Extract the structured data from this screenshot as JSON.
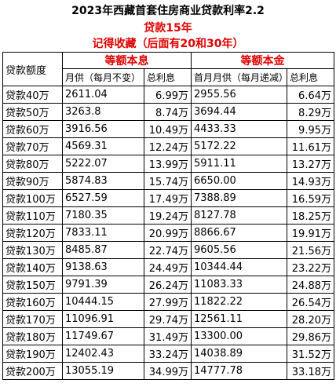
{
  "title": "2023年西藏首套住房商业贷款利率2.2",
  "subtitle": "贷款15年",
  "note": "记得收藏（后面有20和30年）",
  "headers": {
    "amount": "贷款额度",
    "equal_payment": "等额本息",
    "equal_principal": "等额本金",
    "monthly_fixed": "月供（每月不变）",
    "total_interest_1": "总利息",
    "first_monthly": "首月月供（每月递减）",
    "total_interest_2": "总利息"
  },
  "rows": [
    {
      "amount": "贷款40万",
      "monthly": "2611.04",
      "interest1": "6.99万",
      "first": "2955.56",
      "interest2": "6.64万"
    },
    {
      "amount": "贷款50万",
      "monthly": "3263.8",
      "interest1": "8.74万",
      "first": "3694.44",
      "interest2": "8.29万"
    },
    {
      "amount": "贷款60万",
      "monthly": "3916.56",
      "interest1": "10.49万",
      "first": "4433.33",
      "interest2": "9.95万"
    },
    {
      "amount": "贷款70万",
      "monthly": "4569.31",
      "interest1": "12.24万",
      "first": "5172.22",
      "interest2": "11.61万"
    },
    {
      "amount": "贷款80万",
      "monthly": "5222.07",
      "interest1": "13.99万",
      "first": "5911.11",
      "interest2": "13.27万"
    },
    {
      "amount": "贷款90万",
      "monthly": "5874.83",
      "interest1": "15.74万",
      "first": "6650.00",
      "interest2": "14.93万"
    },
    {
      "amount": "贷款100万",
      "monthly": "6527.59",
      "interest1": "17.49万",
      "first": "7388.89",
      "interest2": "16.59万"
    },
    {
      "amount": "贷款110万",
      "monthly": "7180.35",
      "interest1": "19.24万",
      "first": "8127.78",
      "interest2": "18.25万"
    },
    {
      "amount": "贷款120万",
      "monthly": "7833.11",
      "interest1": "20.99万",
      "first": "8866.67",
      "interest2": "19.91万"
    },
    {
      "amount": "贷款130万",
      "monthly": "8485.87",
      "interest1": "22.74万",
      "first": "9605.56",
      "interest2": "21.56万"
    },
    {
      "amount": "贷款140万",
      "monthly": "9138.63",
      "interest1": "24.49万",
      "first": "10344.44",
      "interest2": "23.22万"
    },
    {
      "amount": "贷款150万",
      "monthly": "9791.39",
      "interest1": "26.24万",
      "first": "11083.33",
      "interest2": "24.88万"
    },
    {
      "amount": "贷款160万",
      "monthly": "10444.15",
      "interest1": "27.99万",
      "first": "11822.22",
      "interest2": "26.54万"
    },
    {
      "amount": "贷款170万",
      "monthly": "11096.91",
      "interest1": "29.74万",
      "first": "12561.11",
      "interest2": "28.20万"
    },
    {
      "amount": "贷款180万",
      "monthly": "11749.67",
      "interest1": "31.49万",
      "first": "13300.00",
      "interest2": "29.86万"
    },
    {
      "amount": "贷款190万",
      "monthly": "12402.43",
      "interest1": "33.24万",
      "first": "14038.89",
      "interest2": "31.52万"
    },
    {
      "amount": "贷款200万",
      "monthly": "13055.19",
      "interest1": "34.99万",
      "first": "14777.78",
      "interest2": "33.18万"
    }
  ]
}
